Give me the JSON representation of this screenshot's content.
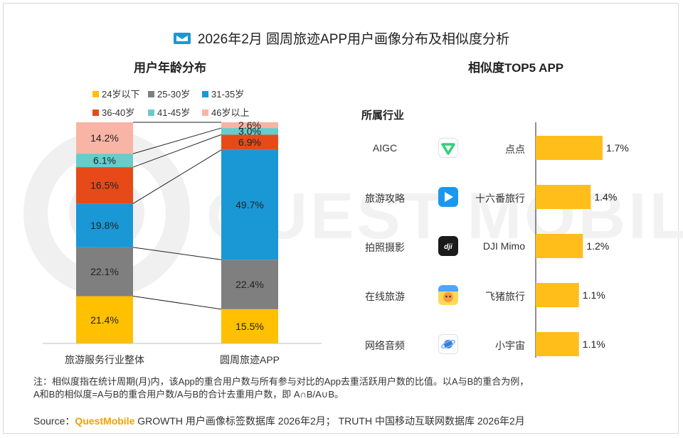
{
  "title": "2026年2月 圆周旅迹APP用户画像分布及相似度分析",
  "age_section_title": "用户年龄分布",
  "similarity_section_title": "相似度TOP5 APP",
  "industry_header": "所属行业",
  "note_line1": "注：相似度指在统计周期(月)内，该App的重合用户数与所有参与对比的App去重活跃用户数的比值。以A与B的重合为例，",
  "note_line2": "A和B的相似度=A与B的重合用户数/A与B的合计去重用户数，即 A∩B/A∪B。",
  "source_prefix": "Source：",
  "source_brand": "QuestMobile",
  "source_text": " GROWTH 用户画像标签数据库 2026年2月； TRUTH 中国移动互联网数据库 2026年2月",
  "watermark": "QUEST MOBILE",
  "colors": {
    "age_under24": "#ffc000",
    "age_25_30": "#7f7f7f",
    "age_31_35": "#1a98d5",
    "age_36_40": "#e64a19",
    "age_41_45": "#66cccc",
    "age_over46": "#f8b4a4",
    "bar_gold": "#ffbe1a",
    "brand_blue": "#1a98d5"
  },
  "chart_data": [
    {
      "type": "bar",
      "stacked": true,
      "percent": true,
      "title": "用户年龄分布",
      "categories": [
        "旅游服务行业整体",
        "圆周旅迹APP"
      ],
      "series": [
        {
          "name": "24岁以下",
          "color_key": "age_under24",
          "values": [
            21.4,
            15.5
          ]
        },
        {
          "name": "25-30岁",
          "color_key": "age_25_30",
          "values": [
            22.1,
            22.4
          ]
        },
        {
          "name": "31-35岁",
          "color_key": "age_31_35",
          "values": [
            19.8,
            49.7
          ]
        },
        {
          "name": "36-40岁",
          "color_key": "age_36_40",
          "values": [
            16.5,
            6.9
          ]
        },
        {
          "name": "41-45岁",
          "color_key": "age_41_45",
          "values": [
            6.1,
            3.0
          ]
        },
        {
          "name": "46岁以上",
          "color_key": "age_over46",
          "values": [
            14.2,
            2.6
          ]
        }
      ],
      "ylim": [
        0,
        100
      ],
      "legend_position": "top"
    },
    {
      "type": "bar",
      "orientation": "horizontal",
      "title": "相似度TOP5 APP",
      "categories": [
        "点点",
        "十六番旅行",
        "DJI Mimo",
        "飞猪旅行",
        "小宇宙"
      ],
      "industries": [
        "AIGC",
        "旅游攻略",
        "拍照摄影",
        "在线旅游",
        "网络音频"
      ],
      "icons": [
        "diandian-icon",
        "shiliufan-icon",
        "dji-icon",
        "fliggy-icon",
        "xiaoyuzhou-icon"
      ],
      "values": [
        1.7,
        1.4,
        1.2,
        1.1,
        1.1
      ],
      "value_labels": [
        "1.7%",
        "1.4%",
        "1.2%",
        "1.1%",
        "1.1%"
      ],
      "xlim": [
        0,
        1.9
      ]
    }
  ]
}
